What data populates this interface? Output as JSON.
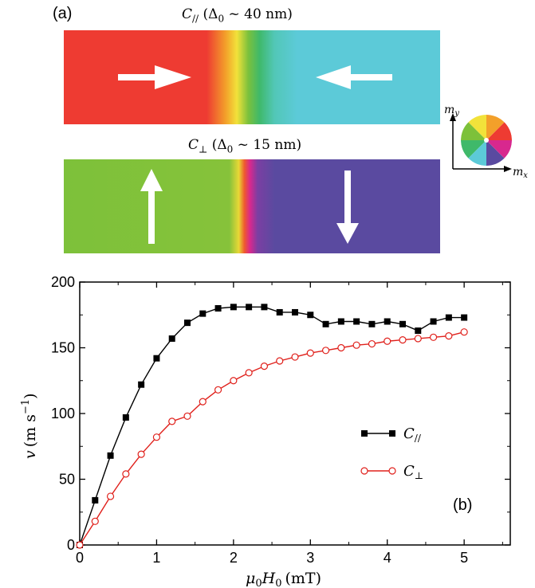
{
  "panel_a": {
    "label": "(a)",
    "top_strip": {
      "title_symbol": "C",
      "title_sub": "//",
      "title_param": "(Δ",
      "title_param_sub": "0",
      "title_value": " ~ 40 nm)",
      "left_color": "#ee3b32",
      "right_color": "#5ccad8",
      "arrows": [
        "right",
        "left"
      ]
    },
    "bottom_strip": {
      "title_symbol": "C",
      "title_sub": "⊥",
      "title_param": "(Δ",
      "title_param_sub": "0",
      "title_value": " ~ 15 nm)",
      "left_color": "#7dc13a",
      "right_color": "#5a4aa0",
      "arrows": [
        "up",
        "down"
      ]
    },
    "color_wheel": {
      "ylabel": "m",
      "ylabel_sub": "y",
      "xlabel": "m",
      "xlabel_sub": "x"
    }
  },
  "chart_data": {
    "type": "line",
    "panel_label": "(b)",
    "xlabel_symbol": "μ",
    "xlabel_sub1": "0",
    "xlabel_symbol2": "H",
    "xlabel_sub2": "0",
    "xlabel_unit": "(mT)",
    "ylabel_symbol": "v",
    "ylabel_unit": "(m s",
    "ylabel_exp": "−1",
    "ylabel_close": ")",
    "xlim": [
      0,
      5.6
    ],
    "ylim": [
      0,
      200
    ],
    "xticks": [
      0,
      1,
      2,
      3,
      4,
      5
    ],
    "yticks": [
      0,
      50,
      100,
      150,
      200
    ],
    "xtick_labels": [
      "0",
      "1",
      "2",
      "3",
      "4",
      "5"
    ],
    "ytick_labels": [
      "0",
      "50",
      "100",
      "150",
      "200"
    ],
    "legend_position": "center-right",
    "series": [
      {
        "name": "C",
        "name_sub": "//",
        "color": "#000000",
        "marker": "filled-square",
        "x": [
          0,
          0.2,
          0.4,
          0.6,
          0.8,
          1.0,
          1.2,
          1.4,
          1.6,
          1.8,
          2.0,
          2.2,
          2.4,
          2.6,
          2.8,
          3.0,
          3.2,
          3.4,
          3.6,
          3.8,
          4.0,
          4.2,
          4.4,
          4.6,
          4.8,
          5.0
        ],
        "y": [
          0,
          34,
          68,
          97,
          122,
          142,
          157,
          169,
          176,
          180,
          181,
          181,
          181,
          177,
          177,
          175,
          168,
          170,
          170,
          168,
          170,
          168,
          163,
          170,
          173,
          173
        ]
      },
      {
        "name": "C",
        "name_sub": "⊥",
        "color": "#e0201b",
        "marker": "open-circle",
        "x": [
          0,
          0.2,
          0.4,
          0.6,
          0.8,
          1.0,
          1.2,
          1.4,
          1.6,
          1.8,
          2.0,
          2.2,
          2.4,
          2.6,
          2.8,
          3.0,
          3.2,
          3.4,
          3.6,
          3.8,
          4.0,
          4.2,
          4.4,
          4.6,
          4.8,
          5.0
        ],
        "y": [
          0,
          18,
          37,
          54,
          69,
          82,
          94,
          98,
          109,
          118,
          125,
          131,
          136,
          140,
          143,
          146,
          148,
          150,
          152,
          153,
          155,
          156,
          157,
          158,
          159,
          162
        ]
      }
    ]
  }
}
